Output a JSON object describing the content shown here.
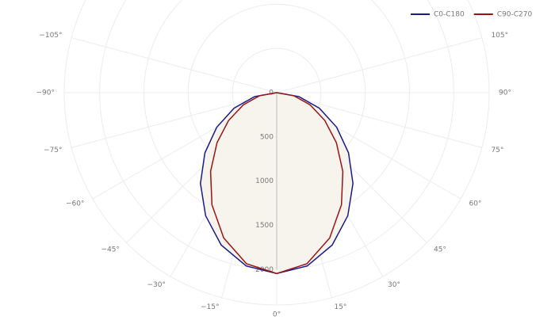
{
  "chart_data": {
    "type": "polar",
    "theta": [
      -90,
      -80,
      -70,
      -60,
      -50,
      -40,
      -30,
      -20,
      -10,
      0,
      10,
      20,
      30,
      40,
      50,
      60,
      70,
      80,
      90
    ],
    "series": [
      {
        "name": "C0-C180",
        "color": "#1a1a8c",
        "values": [
          0,
          254,
          513,
          782,
          1059,
          1340,
          1606,
          1833,
          1989,
          2045,
          1989,
          1833,
          1606,
          1340,
          1059,
          782,
          513,
          254,
          0
        ]
      },
      {
        "name": "C90-C270",
        "color": "#9b1414",
        "values": [
          0,
          196,
          401,
          627,
          880,
          1162,
          1463,
          1749,
          1964,
          2045,
          1964,
          1749,
          1463,
          1162,
          880,
          627,
          401,
          196,
          0
        ]
      }
    ],
    "rlim": [
      0,
      2400
    ],
    "rticks": [
      0,
      500,
      1000,
      1500,
      2000
    ],
    "angleticks": [
      {
        "value": -105,
        "label": "−105°"
      },
      {
        "value": -90,
        "label": "−90°"
      },
      {
        "value": -75,
        "label": "−75°"
      },
      {
        "value": -60,
        "label": "−60°"
      },
      {
        "value": -45,
        "label": "−45°"
      },
      {
        "value": -30,
        "label": "−30°"
      },
      {
        "value": -15,
        "label": "−15°"
      },
      {
        "value": 0,
        "label": "0°"
      },
      {
        "value": 15,
        "label": "15°"
      },
      {
        "value": 30,
        "label": "30°"
      },
      {
        "value": 45,
        "label": "45°"
      },
      {
        "value": 60,
        "label": "60°"
      },
      {
        "value": 75,
        "label": "75°"
      },
      {
        "value": 90,
        "label": "90°"
      },
      {
        "value": 105,
        "label": "105°"
      }
    ],
    "fill": "#f6f4ec",
    "grid": true
  }
}
